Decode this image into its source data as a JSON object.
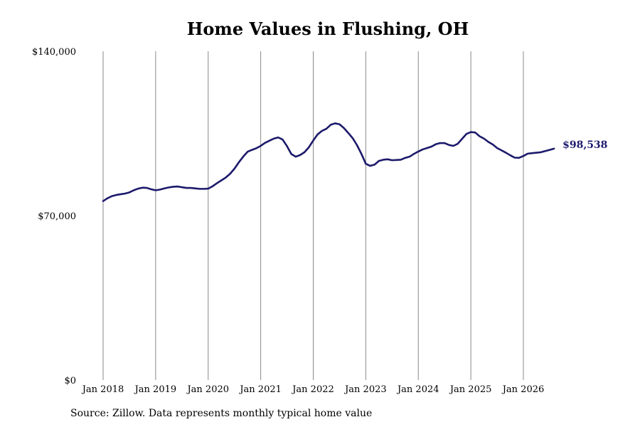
{
  "chart_data": {
    "type": "line",
    "title": "Home Values in Flushing, OH",
    "xlabel": "",
    "ylabel": "",
    "xlim": [
      "2018-01",
      "2026-08"
    ],
    "ylim": [
      0,
      140000
    ],
    "y_ticks": [
      {
        "value": 0,
        "label": "$0"
      },
      {
        "value": 70000,
        "label": "$70,000"
      },
      {
        "value": 140000,
        "label": "$140,000"
      }
    ],
    "x_ticks": [
      {
        "date": "2018-01",
        "label": "Jan 2018"
      },
      {
        "date": "2019-01",
        "label": "Jan 2019"
      },
      {
        "date": "2020-01",
        "label": "Jan 2020"
      },
      {
        "date": "2021-01",
        "label": "Jan 2021"
      },
      {
        "date": "2022-01",
        "label": "Jan 2022"
      },
      {
        "date": "2023-01",
        "label": "Jan 2023"
      },
      {
        "date": "2024-01",
        "label": "Jan 2024"
      },
      {
        "date": "2025-01",
        "label": "Jan 2025"
      },
      {
        "date": "2026-01",
        "label": "Jan 2026"
      }
    ],
    "grid": {
      "vertical": true,
      "horizontal": false
    },
    "line_color": "#1c1a6b",
    "end_label": "$98,538",
    "series": [
      {
        "x": [
          "2018-01",
          "2018-02",
          "2018-03",
          "2018-04",
          "2018-05",
          "2018-06",
          "2018-07",
          "2018-08",
          "2018-09",
          "2018-10",
          "2018-11",
          "2018-12",
          "2019-01",
          "2019-02",
          "2019-03",
          "2019-04",
          "2019-05",
          "2019-06",
          "2019-07",
          "2019-08",
          "2019-09",
          "2019-10",
          "2019-11",
          "2019-12",
          "2020-01",
          "2020-02",
          "2020-03",
          "2020-04",
          "2020-05",
          "2020-06",
          "2020-07",
          "2020-08",
          "2020-09",
          "2020-10",
          "2020-11",
          "2020-12",
          "2021-01",
          "2021-02",
          "2021-03",
          "2021-04",
          "2021-05",
          "2021-06",
          "2021-07",
          "2021-08",
          "2021-09",
          "2021-10",
          "2021-11",
          "2021-12",
          "2022-01",
          "2022-02",
          "2022-03",
          "2022-04",
          "2022-05",
          "2022-06",
          "2022-07",
          "2022-08",
          "2022-09",
          "2022-10",
          "2022-11",
          "2022-12",
          "2023-01",
          "2023-02",
          "2023-03",
          "2023-04",
          "2023-05",
          "2023-06",
          "2023-07",
          "2023-08",
          "2023-09",
          "2023-10",
          "2023-11",
          "2023-12",
          "2024-01",
          "2024-02",
          "2024-03",
          "2024-04",
          "2024-05",
          "2024-06",
          "2024-07",
          "2024-08",
          "2024-09",
          "2024-10",
          "2024-11",
          "2024-12",
          "2025-01",
          "2025-02",
          "2025-03",
          "2025-04",
          "2025-05",
          "2025-06",
          "2025-07",
          "2025-08",
          "2025-09",
          "2025-10",
          "2025-11",
          "2025-12",
          "2026-01",
          "2026-02",
          "2026-03",
          "2026-04",
          "2026-05",
          "2026-06",
          "2026-07",
          "2026-08"
        ],
        "values": [
          76200,
          77400,
          78300,
          78800,
          79100,
          79400,
          79900,
          80800,
          81500,
          81900,
          81800,
          81200,
          80800,
          81100,
          81600,
          82000,
          82300,
          82400,
          82100,
          81800,
          81800,
          81600,
          81400,
          81400,
          81500,
          82500,
          83800,
          85000,
          86200,
          87800,
          90000,
          92700,
          95100,
          97200,
          98000,
          98700,
          99700,
          101000,
          101900,
          102800,
          103300,
          102400,
          99600,
          96200,
          95100,
          95800,
          97000,
          99100,
          102000,
          104600,
          106100,
          107000,
          108700,
          109300,
          108900,
          107300,
          105200,
          103000,
          100000,
          96300,
          92100,
          91200,
          91700,
          93300,
          93800,
          94000,
          93600,
          93700,
          93800,
          94600,
          95100,
          96300,
          97300,
          98200,
          98800,
          99400,
          100400,
          100900,
          100900,
          100100,
          99700,
          100600,
          102700,
          104800,
          105600,
          105400,
          103800,
          102800,
          101400,
          100300,
          98800,
          97800,
          96800,
          95700,
          94700,
          94600,
          95400,
          96400,
          96600,
          96800,
          97000,
          97500,
          98000,
          98538
        ]
      }
    ]
  },
  "source_note": "Source: Zillow. Data represents monthly typical home value"
}
